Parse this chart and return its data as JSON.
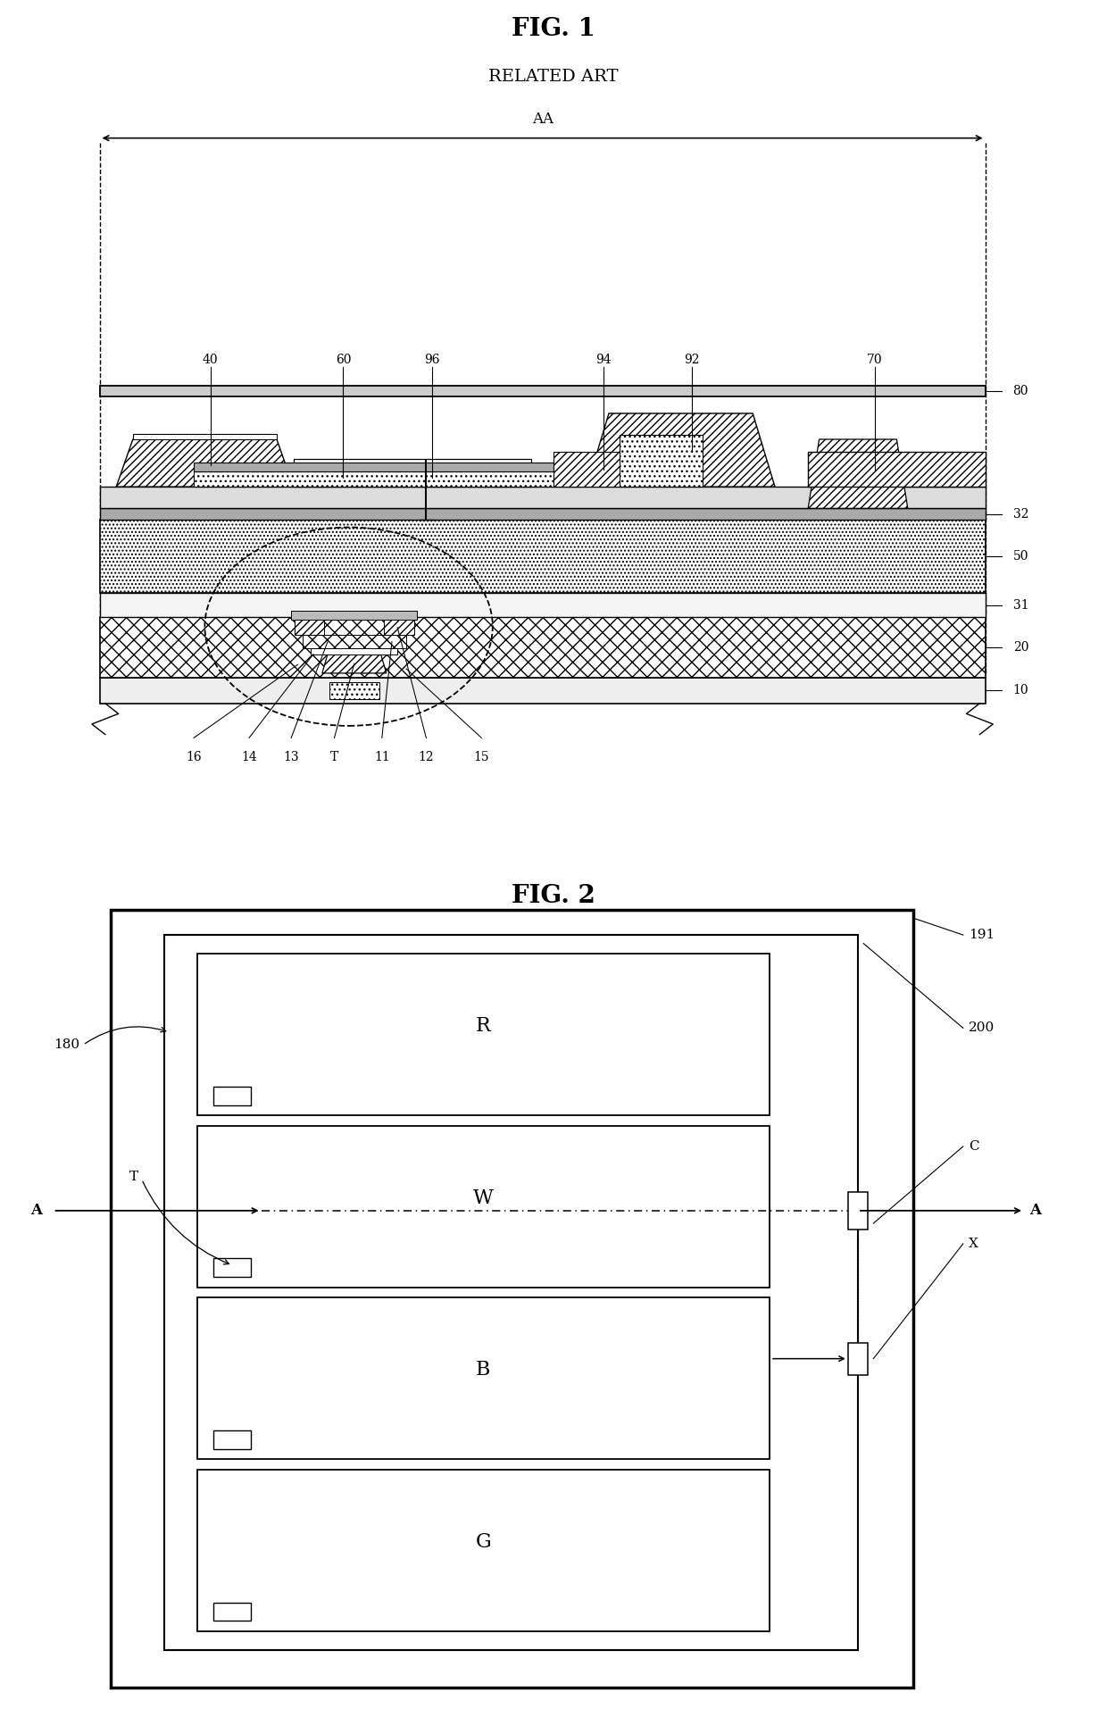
{
  "bg_color": "#ffffff",
  "line_color": "#000000",
  "fig1_title": "FIG. 1",
  "fig1_subtitle": "RELATED ART",
  "fig2_title": "FIG. 2",
  "pixel_labels": [
    "R",
    "W",
    "B",
    "G"
  ],
  "fig1_right_labels": [
    [
      "80",
      0.0
    ],
    [
      "32",
      0.0
    ],
    [
      "50",
      0.0
    ],
    [
      "31",
      0.0
    ],
    [
      "20",
      0.0
    ],
    [
      "10",
      0.0
    ]
  ],
  "fig1_bottom_labels": [
    "16",
    "14",
    "13",
    "T",
    "11",
    "12",
    "15"
  ],
  "fig1_top_labels": [
    "40",
    "60",
    "96",
    "94",
    "92",
    "70"
  ],
  "fig2_right_labels": [
    "191",
    "200",
    "C",
    "X"
  ]
}
